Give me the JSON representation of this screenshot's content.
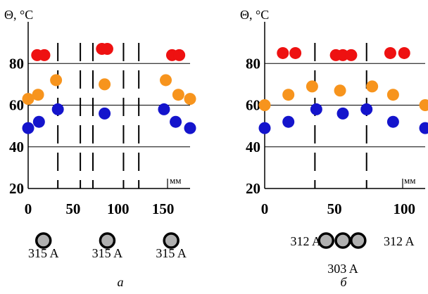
{
  "colors": {
    "red": "#ee1111",
    "orange": "#f7941d",
    "blue": "#1414cc",
    "conductor_fill": "#b0b0b0",
    "conductor_stroke": "#000000"
  },
  "chart_data": [
    {
      "type": "scatter",
      "panel_label": "а",
      "ylabel": "Θ, °C",
      "xunit": "мм",
      "xlim": [
        0,
        180
      ],
      "ylim": [
        20,
        100
      ],
      "xticks": [
        "0",
        "50",
        "100",
        "150"
      ],
      "yticks": [
        "20",
        "40",
        "60",
        "80"
      ],
      "grid": "horizontal",
      "dashed_x": [
        33,
        58,
        72,
        106,
        123
      ],
      "series": [
        {
          "color": "red",
          "x": [
            10,
            18,
            82,
            88,
            160,
            168
          ],
          "y": [
            84,
            84,
            87,
            87,
            84,
            84
          ]
        },
        {
          "color": "orange",
          "x": [
            0,
            11,
            31,
            85,
            153,
            167,
            180
          ],
          "y": [
            63,
            65,
            72,
            70,
            72,
            65,
            63
          ]
        },
        {
          "color": "blue",
          "x": [
            0,
            12,
            33,
            85,
            151,
            164,
            180
          ],
          "y": [
            49,
            52,
            58,
            56,
            58,
            52,
            49
          ]
        }
      ],
      "conductors": [
        {
          "x": 17,
          "label": "315 A"
        },
        {
          "x": 88,
          "label": "315 A"
        },
        {
          "x": 159,
          "label": "315 A"
        }
      ]
    },
    {
      "type": "scatter",
      "panel_label": "б",
      "ylabel": "Θ, °C",
      "xunit": "мм",
      "xlim": [
        0,
        115
      ],
      "ylim": [
        20,
        100
      ],
      "xticks": [
        "0",
        "50",
        "100"
      ],
      "yticks": [
        "20",
        "40",
        "60",
        "80"
      ],
      "grid": "horizontal",
      "dashed_x": [
        36,
        73
      ],
      "series": [
        {
          "color": "red",
          "x": [
            13,
            22,
            51,
            56,
            62,
            90,
            100
          ],
          "y": [
            85,
            85,
            84,
            84,
            84,
            85,
            85
          ]
        },
        {
          "color": "orange",
          "x": [
            0,
            17,
            34,
            54,
            77,
            92,
            115
          ],
          "y": [
            60,
            65,
            69,
            67,
            69,
            65,
            60
          ]
        },
        {
          "color": "blue",
          "x": [
            0,
            17,
            37,
            56,
            73,
            92,
            115
          ],
          "y": [
            49,
            52,
            58,
            56,
            58,
            52,
            49
          ]
        }
      ],
      "conductors": [
        {
          "x": 44,
          "label": ""
        },
        {
          "x": 56,
          "label": "303 A"
        },
        {
          "x": 67,
          "label": ""
        }
      ],
      "side_labels": {
        "left": "312 A",
        "right": "312 A"
      }
    }
  ]
}
